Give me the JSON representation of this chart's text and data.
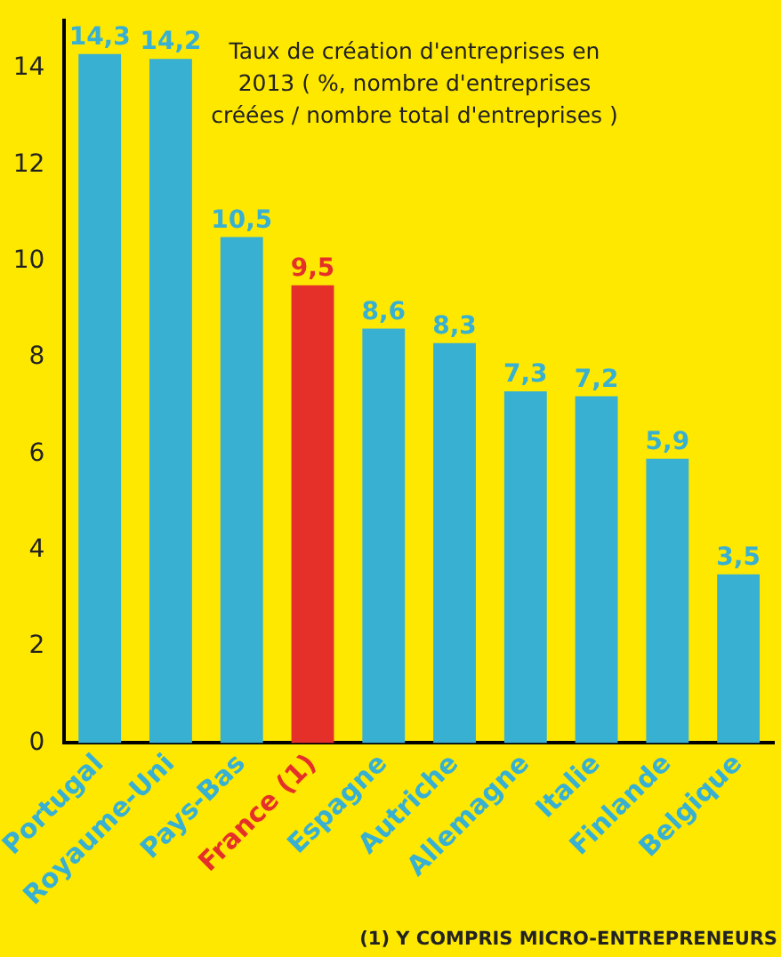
{
  "chart_data": {
    "type": "bar",
    "title": "Taux de création d'entreprises en 2013 ( %, nombre d'entreprises créées / nombre total d'entreprises )",
    "categories": [
      "Portugal",
      "Royaume-Uni",
      "Pays-Bas",
      "France (1)",
      "Espagne",
      "Autriche",
      "Allemagne",
      "Italie",
      "Finlande",
      "Belgique"
    ],
    "values": [
      14.3,
      14.2,
      10.5,
      9.5,
      8.6,
      8.3,
      7.3,
      7.2,
      5.9,
      3.5
    ],
    "colors": [
      "#38b0d2",
      "#38b0d2",
      "#38b0d2",
      "#e5302a",
      "#38b0d2",
      "#38b0d2",
      "#38b0d2",
      "#38b0d2",
      "#38b0d2",
      "#38b0d2"
    ],
    "value_labels": [
      "14,3",
      "14,2",
      "10,5",
      "9,5",
      "8,6",
      "8,3",
      "7,3",
      "7,2",
      "5,9",
      "3,5"
    ],
    "ylim": [
      0,
      15
    ],
    "yticks": [
      0,
      2,
      4,
      6,
      8,
      10,
      12,
      14
    ],
    "grid": false,
    "legend": false,
    "annotations": [
      "(1) Y COMPRIS MICRO-ENTREPRENEURS"
    ]
  }
}
